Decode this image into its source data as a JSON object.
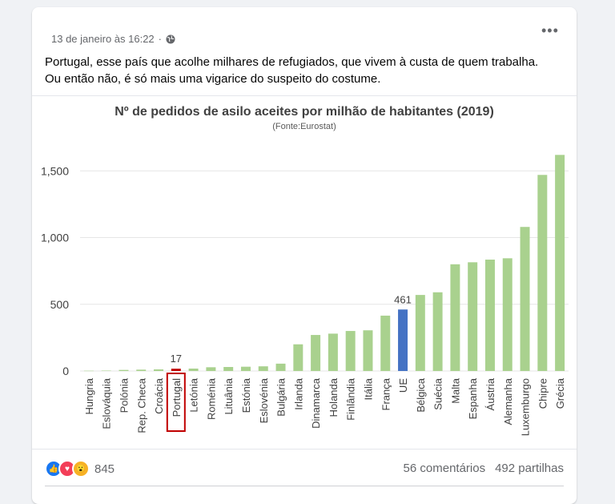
{
  "post": {
    "timestamp": "13 de janeiro às 16:22",
    "separator": "·",
    "privacy_icon": "globe-icon",
    "more_icon": "more-options-icon",
    "text_line1": "Portugal, esse país que acolhe milhares de refugiados, que vivem à custa de quem trabalha.",
    "text_line2": "Ou então não, é só mais uma vigarice do suspeito do costume."
  },
  "chart_data": {
    "type": "bar",
    "title": "Nº de pedidos de asilo aceites por milhão de habitantes (2019)",
    "subtitle": "(Fonte:Eurostat)",
    "categories": [
      "Hungria",
      "Eslováquia",
      "Polónia",
      "Rep. Checa",
      "Croácia",
      "Portugal",
      "Letónia",
      "Roménia",
      "Lituânia",
      "Estónia",
      "Eslovénia",
      "Bulgária",
      "Irlanda",
      "Dinamarca",
      "Holanda",
      "Finlândia",
      "Itália",
      "França",
      "UE",
      "Bélgica",
      "Suécia",
      "Malta",
      "Espanha",
      "Áustria",
      "Alemanha",
      "Luxemburgo",
      "Chipre",
      "Grécia"
    ],
    "values": [
      2,
      3,
      8,
      10,
      12,
      17,
      18,
      28,
      30,
      32,
      35,
      55,
      200,
      270,
      280,
      300,
      305,
      415,
      461,
      570,
      590,
      800,
      815,
      835,
      845,
      1080,
      1470,
      1620
    ],
    "ylim": [
      0,
      1700
    ],
    "yticks": [
      "0",
      "500",
      "1,000",
      "1,500"
    ],
    "ytick_values": [
      0,
      500,
      1000,
      1500
    ],
    "grid": true,
    "data_labels": {
      "Portugal": "17",
      "UE": "461"
    },
    "highlighted_category": "Portugal",
    "colors": {
      "bar": "#a9d18e",
      "eu": "#4472c4",
      "portugal": "#c00000",
      "highlight_box": "#c00000",
      "grid": "#e6e6e6"
    }
  },
  "footer": {
    "reaction_icons": [
      "like-icon",
      "love-icon",
      "wow-icon"
    ],
    "reaction_count": "845",
    "comments": "56 comentários",
    "shares": "492 partilhas"
  }
}
